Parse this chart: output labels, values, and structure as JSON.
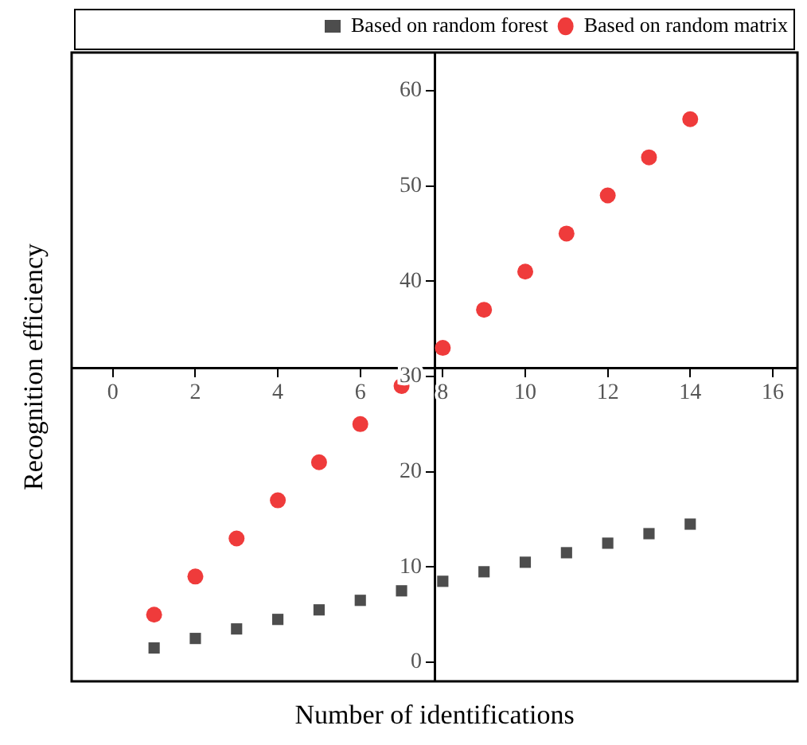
{
  "chart_data": {
    "type": "scatter",
    "xlabel": "Number of identifications",
    "ylabel": "Recognition efficiency",
    "xlim": [
      -1,
      16.6
    ],
    "ylim": [
      -2,
      64
    ],
    "xticks": [
      0,
      2,
      4,
      6,
      8,
      10,
      12,
      14,
      16
    ],
    "yticks": [
      0,
      10,
      20,
      30,
      40,
      50,
      60
    ],
    "x": [
      1,
      2,
      3,
      4,
      5,
      6,
      7,
      8,
      9,
      10,
      11,
      12,
      13,
      14
    ],
    "series": [
      {
        "name": "Based on random forest",
        "color": "#4d4d4d",
        "marker": "square",
        "values": [
          1.5,
          2.5,
          3.5,
          4.5,
          5.5,
          6.5,
          7.5,
          8.5,
          9.5,
          10.5,
          11.5,
          12.5,
          13.5,
          14.5
        ]
      },
      {
        "name": "Based on random matrix",
        "color": "#ef3b3b",
        "marker": "circle",
        "values": [
          5,
          9,
          13,
          17,
          21,
          25,
          29,
          33,
          37,
          41,
          45,
          49,
          53,
          57
        ]
      }
    ],
    "grid": false,
    "legend": "top right"
  }
}
